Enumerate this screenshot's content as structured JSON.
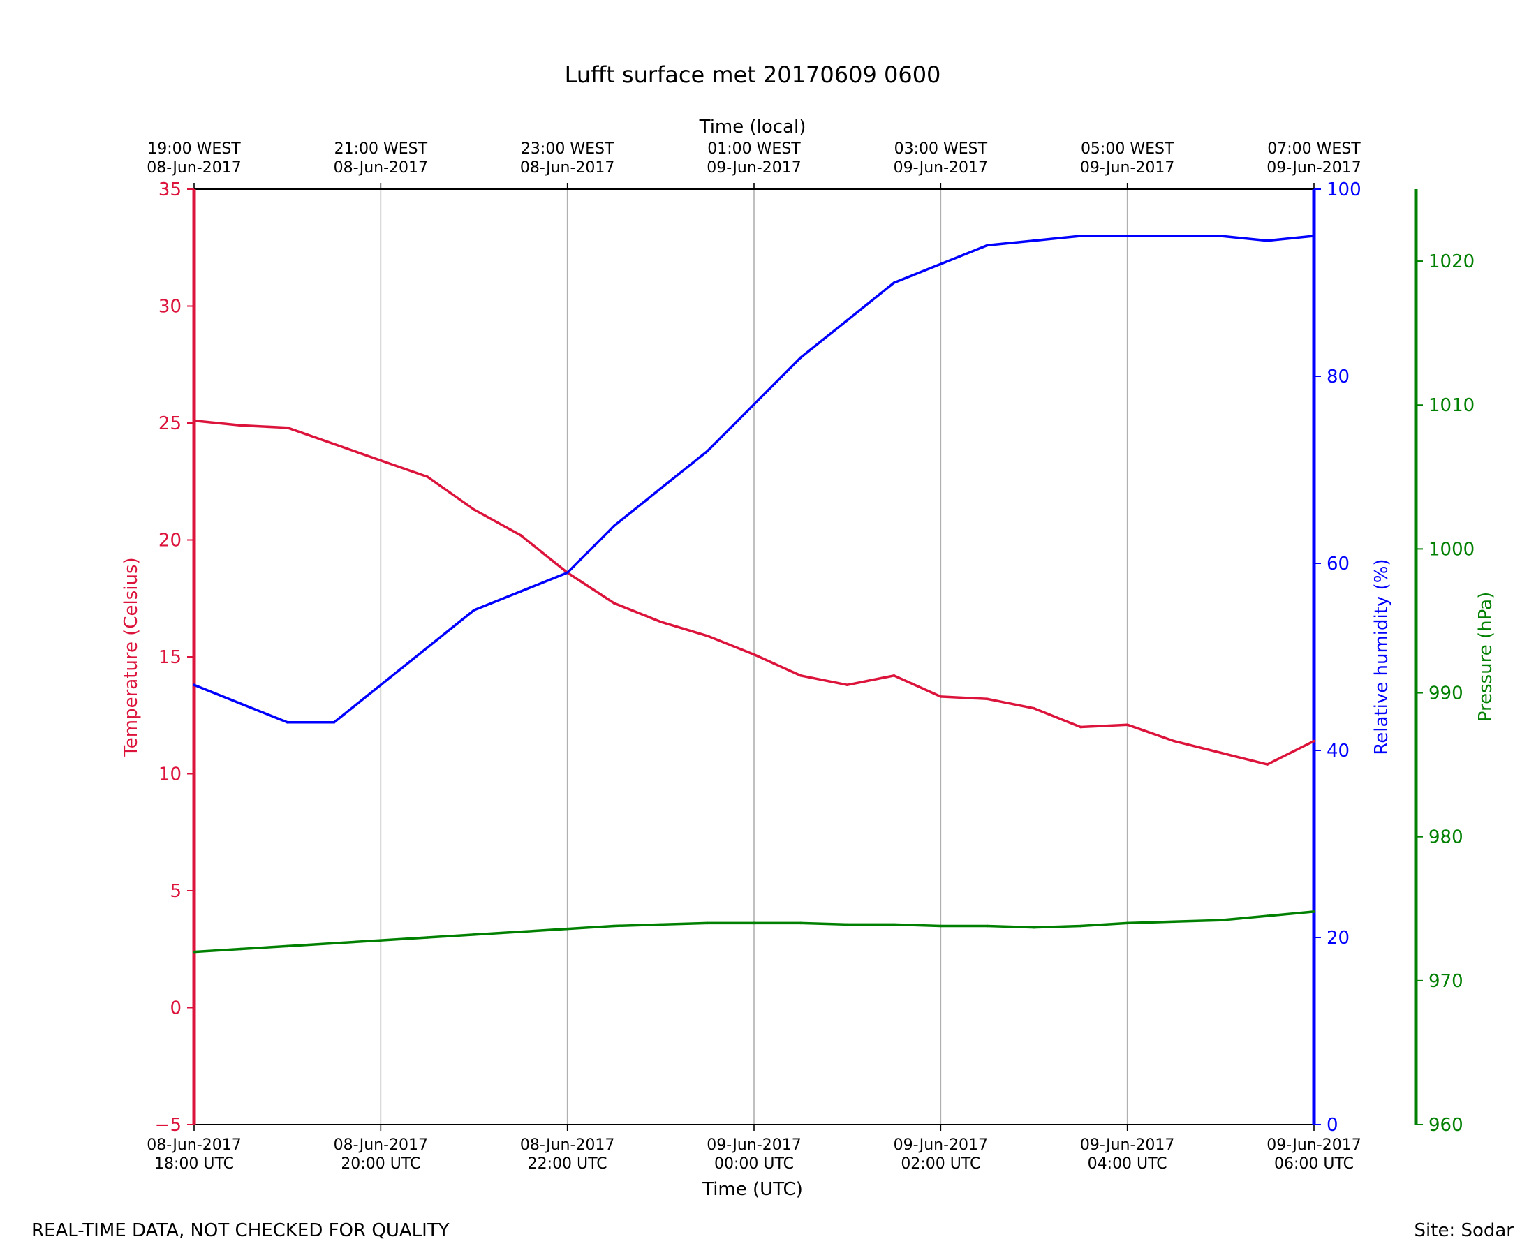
{
  "chart_data": {
    "type": "line",
    "title": "Lufft surface met 20170609 0600",
    "top_axis_label": "Time (local)",
    "bottom_axis_label": "Time (UTC)",
    "x_ticks_utc": [
      {
        "date": "08-Jun-2017",
        "time": "18:00 UTC"
      },
      {
        "date": "08-Jun-2017",
        "time": "20:00 UTC"
      },
      {
        "date": "08-Jun-2017",
        "time": "22:00 UTC"
      },
      {
        "date": "09-Jun-2017",
        "time": "00:00 UTC"
      },
      {
        "date": "09-Jun-2017",
        "time": "02:00 UTC"
      },
      {
        "date": "09-Jun-2017",
        "time": "04:00 UTC"
      },
      {
        "date": "09-Jun-2017",
        "time": "06:00 UTC"
      }
    ],
    "x_ticks_local": [
      {
        "time": "19:00 WEST",
        "date": "08-Jun-2017"
      },
      {
        "time": "21:00 WEST",
        "date": "08-Jun-2017"
      },
      {
        "time": "23:00 WEST",
        "date": "08-Jun-2017"
      },
      {
        "time": "01:00 WEST",
        "date": "09-Jun-2017"
      },
      {
        "time": "03:00 WEST",
        "date": "09-Jun-2017"
      },
      {
        "time": "05:00 WEST",
        "date": "09-Jun-2017"
      },
      {
        "time": "07:00 WEST",
        "date": "09-Jun-2017"
      }
    ],
    "x_range_hours": [
      0,
      12
    ],
    "grid_vertical": true,
    "axes": {
      "temperature": {
        "label": "Temperature (Celsius)",
        "range": [
          -5,
          35
        ],
        "ticks": [
          -5,
          0,
          5,
          10,
          15,
          20,
          25,
          30,
          35
        ],
        "color": "#dc143c"
      },
      "humidity": {
        "label": "Relative humidity (%)",
        "range": [
          0,
          100
        ],
        "ticks": [
          0,
          20,
          40,
          60,
          80,
          100
        ],
        "color": "#0000ff"
      },
      "pressure": {
        "label": "Pressure (hPa)",
        "range": [
          960,
          1025
        ],
        "ticks": [
          960,
          970,
          980,
          990,
          1000,
          1010,
          1020
        ],
        "color": "#008000"
      }
    },
    "series": [
      {
        "name": "Temperature",
        "axis": "temperature",
        "color": "#dc143c",
        "x": [
          0,
          0.5,
          1,
          1.5,
          2,
          2.5,
          3,
          3.5,
          4,
          4.5,
          5,
          5.5,
          6,
          6.5,
          7,
          7.5,
          8,
          8.5,
          9,
          9.5,
          10,
          10.5,
          11,
          11.5,
          12
        ],
        "values": [
          25.1,
          24.9,
          24.8,
          24.1,
          23.4,
          22.7,
          21.3,
          20.2,
          18.6,
          17.3,
          16.5,
          15.9,
          15.1,
          14.2,
          13.8,
          14.2,
          13.3,
          13.2,
          12.8,
          12.0,
          12.1,
          11.4,
          10.9,
          10.4,
          11.4
        ]
      },
      {
        "name": "Relative humidity",
        "axis": "humidity",
        "color": "#0000ff",
        "x": [
          0,
          0.5,
          1,
          1.5,
          2,
          2.5,
          3,
          3.5,
          4,
          4.5,
          5,
          5.5,
          6,
          6.5,
          7,
          7.5,
          8,
          8.5,
          9,
          9.5,
          10,
          10.5,
          11,
          11.5,
          12
        ],
        "values": [
          47,
          45,
          43,
          43,
          47,
          51,
          55,
          57,
          59,
          64,
          68,
          72,
          77,
          82,
          86,
          90,
          92,
          94,
          94.5,
          95,
          95,
          95,
          95,
          94.5,
          95
        ]
      },
      {
        "name": "Pressure",
        "axis": "pressure",
        "color": "#008000",
        "x": [
          0,
          0.5,
          1,
          1.5,
          2,
          2.5,
          3,
          3.5,
          4,
          4.5,
          5,
          5.5,
          6,
          6.5,
          7,
          7.5,
          8,
          8.5,
          9,
          9.5,
          10,
          10.5,
          11,
          11.5,
          12
        ],
        "values": [
          972.0,
          972.2,
          972.4,
          972.6,
          972.8,
          973.0,
          973.2,
          973.4,
          973.6,
          973.8,
          973.9,
          974.0,
          974.0,
          974.0,
          973.9,
          973.9,
          973.8,
          973.8,
          973.7,
          973.8,
          974.0,
          974.1,
          974.2,
          974.5,
          974.8
        ]
      }
    ]
  },
  "footer": {
    "left": "REAL-TIME DATA, NOT CHECKED FOR QUALITY",
    "right": "Site: Sodar"
  }
}
